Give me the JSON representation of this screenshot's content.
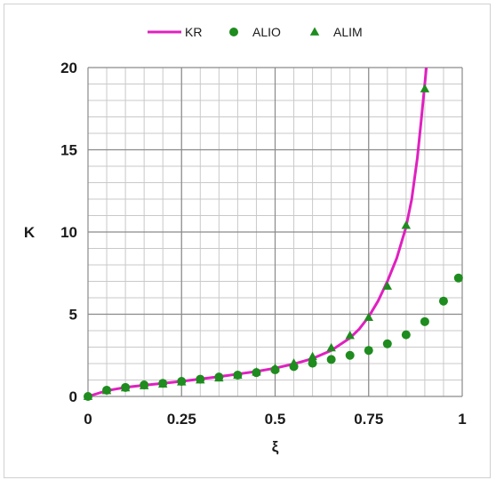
{
  "chart_data": {
    "type": "scatter",
    "title": "",
    "xlabel": "ξ",
    "ylabel": "K",
    "xlim": [
      0,
      1
    ],
    "ylim": [
      0,
      20
    ],
    "x_ticks": [
      0,
      0.25,
      0.5,
      0.75,
      1
    ],
    "x_tick_labels": [
      "0",
      "0.25",
      "0.5",
      "0.75",
      "1"
    ],
    "y_ticks": [
      0,
      5,
      10,
      15,
      20
    ],
    "y_tick_labels": [
      "0",
      "5",
      "10",
      "15",
      "20"
    ],
    "grid": true,
    "legend_position": "top-center",
    "series": [
      {
        "name": "KR",
        "kind": "line",
        "color": "#e020c0",
        "x": [
          0,
          0.05,
          0.1,
          0.15,
          0.2,
          0.25,
          0.3,
          0.35,
          0.4,
          0.45,
          0.5,
          0.55,
          0.6,
          0.65,
          0.7,
          0.725,
          0.75,
          0.775,
          0.8,
          0.825,
          0.85,
          0.865,
          0.88,
          0.89,
          0.9,
          0.905,
          0.91
        ],
        "y": [
          0,
          0.35,
          0.55,
          0.68,
          0.8,
          0.92,
          1.06,
          1.2,
          1.36,
          1.52,
          1.72,
          1.98,
          2.3,
          2.8,
          3.55,
          4.1,
          4.85,
          5.8,
          7.0,
          8.4,
          10.3,
          12.0,
          14.5,
          16.7,
          19.0,
          20.2,
          21.5
        ]
      },
      {
        "name": "ALIO",
        "kind": "marker-circle",
        "color": "#1e8c1e",
        "x": [
          0,
          0.05,
          0.1,
          0.15,
          0.2,
          0.25,
          0.3,
          0.35,
          0.4,
          0.45,
          0.5,
          0.55,
          0.6,
          0.65,
          0.7,
          0.75,
          0.8,
          0.85,
          0.9,
          0.95,
          0.99
        ],
        "y": [
          0,
          0.38,
          0.55,
          0.7,
          0.8,
          0.92,
          1.05,
          1.18,
          1.3,
          1.45,
          1.62,
          1.82,
          2.02,
          2.25,
          2.5,
          2.8,
          3.2,
          3.75,
          4.55,
          5.8,
          7.2
        ]
      },
      {
        "name": "ALIM",
        "kind": "marker-triangle",
        "color": "#1e8c1e",
        "x": [
          0,
          0.05,
          0.1,
          0.15,
          0.2,
          0.25,
          0.3,
          0.35,
          0.4,
          0.45,
          0.5,
          0.55,
          0.6,
          0.65,
          0.7,
          0.75,
          0.8,
          0.85,
          0.9
        ],
        "y": [
          0,
          0.35,
          0.52,
          0.65,
          0.75,
          0.88,
          1.0,
          1.12,
          1.28,
          1.48,
          1.7,
          2.02,
          2.42,
          2.95,
          3.7,
          4.8,
          6.7,
          10.4,
          18.7
        ]
      }
    ]
  }
}
